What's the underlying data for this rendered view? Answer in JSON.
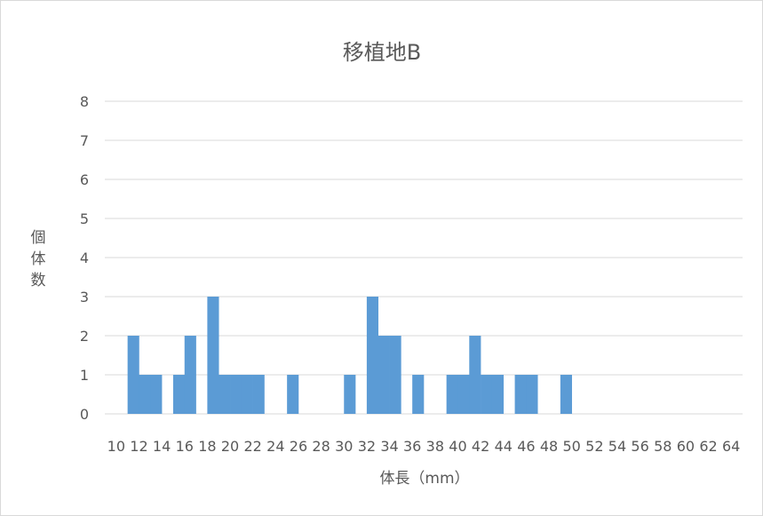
{
  "chart_data": {
    "type": "bar",
    "title": "移植地B",
    "xlabel": "体長（mm）",
    "ylabel": "個体数",
    "x_tick_labels": [
      "10",
      "12",
      "14",
      "16",
      "18",
      "20",
      "22",
      "24",
      "26",
      "28",
      "30",
      "32",
      "34",
      "36",
      "38",
      "40",
      "42",
      "44",
      "46",
      "48",
      "50",
      "52",
      "54",
      "56",
      "58",
      "60",
      "62",
      "64"
    ],
    "categories": [
      10,
      11,
      12,
      13,
      14,
      15,
      16,
      17,
      18,
      19,
      20,
      21,
      22,
      23,
      24,
      25,
      26,
      27,
      28,
      29,
      30,
      31,
      32,
      33,
      34,
      35,
      36,
      37,
      38,
      39,
      40,
      41,
      42,
      43,
      44,
      45,
      46,
      47,
      48,
      49,
      50,
      51,
      52,
      53,
      54,
      55,
      56,
      57,
      58,
      59,
      60,
      61,
      62,
      63,
      64,
      65
    ],
    "values": [
      0,
      0,
      2,
      1,
      1,
      0,
      1,
      2,
      0,
      3,
      1,
      1,
      1,
      1,
      0,
      0,
      1,
      0,
      0,
      0,
      0,
      1,
      0,
      3,
      2,
      2,
      0,
      1,
      0,
      0,
      1,
      1,
      2,
      1,
      1,
      0,
      1,
      1,
      0,
      0,
      1,
      0,
      0,
      0,
      0,
      0,
      0,
      0,
      0,
      0,
      0,
      0,
      0,
      0,
      0,
      0
    ],
    "ylim": [
      0,
      8
    ],
    "yticks": [
      "0",
      "1",
      "2",
      "3",
      "4",
      "5",
      "6",
      "7",
      "8"
    ],
    "grid": true,
    "bar_color": "#5b9bd5"
  }
}
